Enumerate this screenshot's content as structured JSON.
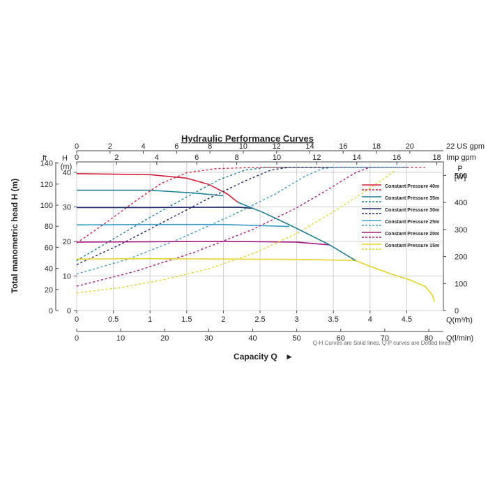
{
  "chart_data": {
    "type": "line",
    "title": "Hydraulic Performance Curves",
    "xlabel": "Capacity Q",
    "xlabel_arrow": "►",
    "ylabel": "Total manometric head H (m)",
    "note": "Q-H Curves are Solid lines, Q-P curves are Dotted lines",
    "x_axes": {
      "m3h": {
        "unit": "Q(m³/h)",
        "range": [
          0,
          5
        ],
        "ticks": [
          "0",
          "0.5",
          "1",
          "1.5",
          "2",
          "2.5",
          "3",
          "3.5",
          "4",
          "4.5"
        ]
      },
      "lmin": {
        "unit": "Q(l/min)",
        "ticks": [
          "0",
          "10",
          "20",
          "30",
          "40",
          "50",
          "60",
          "70",
          "80"
        ]
      },
      "usgpm": {
        "unit": "22 US gpm",
        "ticks": [
          "0",
          "2",
          "4",
          "6",
          "8",
          "10",
          "12",
          "14",
          "16",
          "18",
          "20"
        ]
      },
      "impgpm": {
        "unit": "Imp gpm",
        "ticks": [
          "0",
          "2",
          "4",
          "6",
          "8",
          "10",
          "12",
          "14",
          "16",
          "18"
        ]
      }
    },
    "y_axes": {
      "head_m": {
        "unit_top": "H",
        "unit": "(m)",
        "range": [
          0,
          43
        ],
        "ticks": [
          "0",
          "10",
          "20",
          "30",
          "40"
        ]
      },
      "head_ft": {
        "unit": "ft",
        "ticks": [
          "0",
          "20",
          "40",
          "60",
          "80",
          "100",
          "120",
          "140"
        ]
      },
      "power_w": {
        "unit_top": "P",
        "unit": "[W]",
        "range": [
          0,
          550
        ],
        "ticks": [
          "0",
          "100",
          "200",
          "300",
          "400",
          "500"
        ]
      }
    },
    "series": [
      {
        "name": "Constant Pressure 40m",
        "color": "#d4213b",
        "qh": [
          [
            0,
            39.6
          ],
          [
            1,
            39.3
          ],
          [
            1.5,
            38.3
          ],
          [
            1.8,
            36.5
          ],
          [
            2.05,
            33.8
          ],
          [
            2.2,
            31.3
          ]
        ],
        "qp": [
          [
            0,
            250
          ],
          [
            0.4,
            325
          ],
          [
            0.8,
            405
          ],
          [
            1.15,
            470
          ],
          [
            1.5,
            510
          ],
          [
            1.9,
            525
          ],
          [
            2.5,
            530
          ],
          [
            3.5,
            530
          ],
          [
            4.5,
            530
          ],
          [
            4.75,
            530
          ]
        ]
      },
      {
        "name": "Constant Pressure 35m",
        "color": "#1f7f97",
        "qh": [
          [
            0,
            34.8
          ],
          [
            1,
            34.8
          ],
          [
            1.6,
            34.0
          ],
          [
            2.0,
            33.2
          ]
        ],
        "qp": [
          [
            0,
            185
          ],
          [
            0.5,
            265
          ],
          [
            1.0,
            345
          ],
          [
            1.5,
            420
          ],
          [
            1.95,
            485
          ],
          [
            2.3,
            520
          ],
          [
            2.6,
            530
          ],
          [
            4.5,
            530
          ]
        ]
      },
      {
        "name": "Constant Pressure 30m",
        "color": "#1c2a6b",
        "qh": [
          [
            0,
            29.8
          ],
          [
            1,
            29.8
          ],
          [
            2.2,
            29.9
          ],
          [
            2.4,
            29.6
          ]
        ],
        "qp": [
          [
            0,
            170
          ],
          [
            0.6,
            245
          ],
          [
            1.2,
            330
          ],
          [
            1.8,
            415
          ],
          [
            2.3,
            480
          ],
          [
            2.65,
            520
          ],
          [
            2.9,
            530
          ],
          [
            4.5,
            530
          ]
        ]
      },
      {
        "name": "Constant Pressure 25m",
        "color": "#3a9bc6",
        "qh": [
          [
            0,
            24.8
          ],
          [
            1,
            24.9
          ],
          [
            2,
            24.9
          ],
          [
            2.9,
            24.3
          ]
        ],
        "qp": [
          [
            0,
            135
          ],
          [
            0.7,
            190
          ],
          [
            1.4,
            265
          ],
          [
            2.1,
            350
          ],
          [
            2.7,
            430
          ],
          [
            3.1,
            495
          ],
          [
            3.35,
            525
          ],
          [
            3.5,
            530
          ],
          [
            4.5,
            530
          ]
        ]
      },
      {
        "name": "Constant Pressure 20m",
        "color": "#a7187f",
        "qh": [
          [
            0,
            19.8
          ],
          [
            1,
            19.9
          ],
          [
            2,
            20.0
          ],
          [
            3.0,
            19.8
          ],
          [
            3.45,
            19.0
          ]
        ],
        "qp": [
          [
            0,
            90
          ],
          [
            0.8,
            145
          ],
          [
            1.6,
            215
          ],
          [
            2.4,
            300
          ],
          [
            3.0,
            380
          ],
          [
            3.5,
            460
          ],
          [
            3.8,
            510
          ],
          [
            4.0,
            530
          ]
        ]
      },
      {
        "name": "Constant Pressure 15m",
        "color": "#e5d22a",
        "qh": [
          [
            0,
            14.9
          ],
          [
            1,
            15.0
          ],
          [
            2,
            14.9
          ],
          [
            3,
            14.8
          ],
          [
            3.8,
            14.5
          ]
        ],
        "qp": [
          [
            0,
            65
          ],
          [
            0.6,
            85
          ],
          [
            1.2,
            115
          ],
          [
            1.8,
            155
          ],
          [
            2.4,
            210
          ],
          [
            3.0,
            285
          ],
          [
            3.5,
            365
          ],
          [
            3.9,
            435
          ],
          [
            4.2,
            490
          ],
          [
            4.35,
            520
          ]
        ]
      }
    ],
    "tail": [
      [
        3.8,
        14.5
      ],
      [
        4.0,
        12.8
      ],
      [
        4.3,
        10.5
      ],
      [
        4.55,
        8.8
      ],
      [
        4.75,
        7.0
      ],
      [
        4.85,
        4.5
      ],
      [
        4.88,
        2.5
      ]
    ],
    "grid": true,
    "legend_position": "right"
  }
}
